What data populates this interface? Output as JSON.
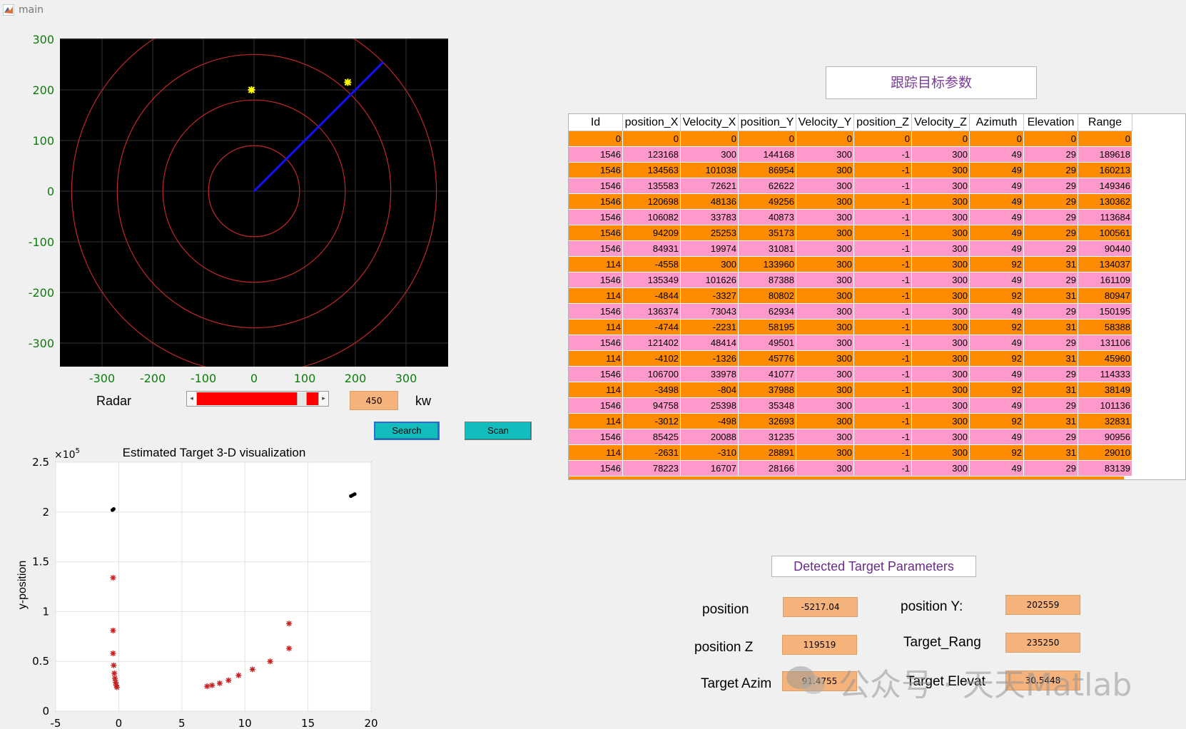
{
  "window": {
    "title": "main"
  },
  "radar": {
    "x_ticks": [
      "-300",
      "-200",
      "-100",
      "0",
      "100",
      "200",
      "300"
    ],
    "y_ticks": [
      "300",
      "200",
      "100",
      "0",
      "-100",
      "-200",
      "-300"
    ],
    "targets": [
      {
        "x": -5,
        "y": 200
      },
      {
        "x": 185,
        "y": 215
      }
    ],
    "sweep_end": {
      "x": 255,
      "y": 255
    },
    "ring_radii": [
      90,
      180,
      270,
      360
    ]
  },
  "controls": {
    "radar_label": "Radar",
    "power_value": "450",
    "power_unit": "kw",
    "slider_fraction": 0.9,
    "search_label": "Search",
    "scan_label": "Scan"
  },
  "tracking": {
    "title": "跟踪目标参数",
    "columns": [
      "Id",
      "position_X",
      "Velocity_X",
      "position_Y",
      "Velocity_Y",
      "position_Z",
      "Velocity_Z",
      "Azimuth",
      "Elevation",
      "Range"
    ],
    "rows": [
      [
        "0",
        "0",
        "0",
        "0",
        "0",
        "0",
        "0",
        "0",
        "0",
        "0"
      ],
      [
        "1546",
        "123168",
        "300",
        "144168",
        "300",
        "-1",
        "300",
        "49",
        "29",
        "189618"
      ],
      [
        "1546",
        "134563",
        "101038",
        "86954",
        "300",
        "-1",
        "300",
        "49",
        "29",
        "160213"
      ],
      [
        "1546",
        "135583",
        "72621",
        "62622",
        "300",
        "-1",
        "300",
        "49",
        "29",
        "149346"
      ],
      [
        "1546",
        "120698",
        "48136",
        "49256",
        "300",
        "-1",
        "300",
        "49",
        "29",
        "130362"
      ],
      [
        "1546",
        "106082",
        "33783",
        "40873",
        "300",
        "-1",
        "300",
        "49",
        "29",
        "113684"
      ],
      [
        "1546",
        "94209",
        "25253",
        "35173",
        "300",
        "-1",
        "300",
        "49",
        "29",
        "100561"
      ],
      [
        "1546",
        "84931",
        "19974",
        "31081",
        "300",
        "-1",
        "300",
        "49",
        "29",
        "90440"
      ],
      [
        "114",
        "-4558",
        "300",
        "133960",
        "300",
        "-1",
        "300",
        "92",
        "31",
        "134037"
      ],
      [
        "1546",
        "135349",
        "101626",
        "87388",
        "300",
        "-1",
        "300",
        "49",
        "29",
        "161109"
      ],
      [
        "114",
        "-4844",
        "-3327",
        "80802",
        "300",
        "-1",
        "300",
        "92",
        "31",
        "80947"
      ],
      [
        "1546",
        "136374",
        "73043",
        "62934",
        "300",
        "-1",
        "300",
        "49",
        "29",
        "150195"
      ],
      [
        "114",
        "-4744",
        "-2231",
        "58195",
        "300",
        "-1",
        "300",
        "92",
        "31",
        "58388"
      ],
      [
        "1546",
        "121402",
        "48414",
        "49501",
        "300",
        "-1",
        "300",
        "49",
        "29",
        "131106"
      ],
      [
        "114",
        "-4102",
        "-1326",
        "45776",
        "300",
        "-1",
        "300",
        "92",
        "31",
        "45960"
      ],
      [
        "1546",
        "106700",
        "33978",
        "41077",
        "300",
        "-1",
        "300",
        "49",
        "29",
        "114333"
      ],
      [
        "114",
        "-3498",
        "-804",
        "37988",
        "300",
        "-1",
        "300",
        "92",
        "31",
        "38149"
      ],
      [
        "1546",
        "94758",
        "25398",
        "35348",
        "300",
        "-1",
        "300",
        "49",
        "29",
        "101136"
      ],
      [
        "114",
        "-3012",
        "-498",
        "32693",
        "300",
        "-1",
        "300",
        "92",
        "31",
        "32831"
      ],
      [
        "1546",
        "85425",
        "20088",
        "31235",
        "300",
        "-1",
        "300",
        "49",
        "29",
        "90956"
      ],
      [
        "114",
        "-2631",
        "-310",
        "28891",
        "300",
        "-1",
        "300",
        "92",
        "31",
        "29010"
      ],
      [
        "1546",
        "78223",
        "16707",
        "28166",
        "300",
        "-1",
        "300",
        "49",
        "29",
        "83139"
      ]
    ]
  },
  "detected": {
    "title": "Detected Target Parameters",
    "position_x_label": "position",
    "position_x_value": "-5217.04",
    "position_y_label": "position  Y:",
    "position_y_value": "202559",
    "position_z_label": "position  Z",
    "position_z_value": "119519",
    "range_label": "Target_Rang",
    "range_value": "235250",
    "azimuth_label": "Target  Azim",
    "azimuth_value": "91.4755",
    "elevation_label": "Target  Elevat",
    "elevation_value": "30.5448"
  },
  "chart_data": {
    "type": "scatter",
    "title": "Estimated Target 3-D visualization",
    "xlabel": "",
    "ylabel": "y-position",
    "y_multiplier": "×10",
    "y_exponent": "5",
    "xlim": [
      -5,
      20
    ],
    "ylim": [
      0,
      2.5
    ],
    "x_ticks": [
      "-5",
      "0",
      "5",
      "10",
      "15",
      "20"
    ],
    "y_ticks": [
      "0",
      "0.5",
      "1",
      "1.5",
      "2",
      "2.5"
    ],
    "grid": true,
    "series": [
      {
        "marker": "asterisk",
        "color": "#c81e1e",
        "points": [
          [
            -0.45,
            1.34
          ],
          [
            -0.45,
            0.81
          ],
          [
            -0.45,
            0.58
          ],
          [
            -0.4,
            0.46
          ],
          [
            -0.35,
            0.38
          ],
          [
            -0.3,
            0.33
          ],
          [
            -0.25,
            0.29
          ],
          [
            -0.2,
            0.26
          ],
          [
            -0.15,
            0.24
          ],
          [
            7.0,
            0.25
          ],
          [
            7.4,
            0.26
          ],
          [
            8.0,
            0.28
          ],
          [
            8.7,
            0.31
          ],
          [
            9.5,
            0.36
          ],
          [
            10.6,
            0.42
          ],
          [
            12.0,
            0.5
          ],
          [
            13.5,
            0.63
          ],
          [
            13.5,
            0.88
          ]
        ]
      },
      {
        "marker": "dot",
        "color": "#000000",
        "points": [
          [
            -0.5,
            2.02
          ],
          [
            -0.4,
            2.03
          ],
          [
            18.4,
            2.16
          ],
          [
            18.55,
            2.17
          ],
          [
            18.7,
            2.18
          ]
        ]
      }
    ]
  },
  "watermark": {
    "text": "公众号 · 天天Matlab"
  }
}
